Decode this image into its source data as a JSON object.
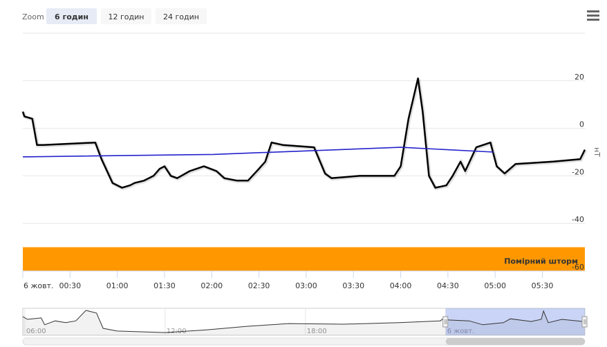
{
  "chart_data": {
    "type": "line",
    "zoom": {
      "label": "Zoom",
      "buttons": [
        "6 годин",
        "12 годин",
        "24 годин"
      ],
      "selected": 0
    },
    "y_label": "нТ",
    "xlim": [
      "00:00",
      "05:57"
    ],
    "xticks": [
      {
        "value": "00:00",
        "label": "6 жовт."
      },
      "00:30",
      "01:00",
      "01:30",
      "02:00",
      "02:30",
      "03:00",
      "03:30",
      "04:00",
      "04:30",
      "05:00",
      "05:30"
    ],
    "ylim": [
      -60,
      40
    ],
    "yticks": [
      -60,
      -40,
      -20,
      0,
      20
    ],
    "grid": true,
    "plot_bands": [
      {
        "from": -60,
        "to": -50,
        "color": "#ff9800",
        "label": "Помірний шторм"
      }
    ],
    "series": [
      {
        "color": "#000000",
        "x": [
          "00:00",
          "00:01",
          "00:06",
          "00:09",
          "00:13",
          "00:46",
          "00:50",
          "00:57",
          "01:03",
          "01:08",
          "01:11",
          "01:17",
          "01:23",
          "01:27",
          "01:30",
          "01:34",
          "01:38",
          "01:46",
          "01:55",
          "02:03",
          "02:08",
          "02:16",
          "02:23",
          "02:30",
          "02:34",
          "02:38",
          "02:45",
          "03:05",
          "03:12",
          "03:16",
          "03:34",
          "03:56",
          "04:00",
          "04:05",
          "04:11",
          "04:14",
          "04:18",
          "04:22",
          "04:29",
          "04:33",
          "04:38",
          "04:41",
          "04:48",
          "04:57",
          "05:01",
          "05:06",
          "05:13",
          "05:37",
          "05:54",
          "05:57"
        ],
        "values": [
          7,
          5,
          4,
          -7,
          -7,
          -6,
          -13,
          -23,
          -25,
          -24,
          -23,
          -22,
          -20,
          -17,
          -16,
          -20,
          -21,
          -18,
          -16,
          -18,
          -21,
          -22,
          -22,
          -17,
          -14,
          -6,
          -7,
          -8,
          -19,
          -21,
          -20,
          -20,
          -16,
          4,
          21,
          7,
          -20,
          -25,
          -24,
          -20,
          -14,
          -18,
          -8,
          -6,
          -16,
          -19,
          -15,
          -14,
          -13,
          -9
        ]
      },
      {
        "color": "#2222cc",
        "x": [
          "00:00",
          "02:01",
          "04:00",
          "04:59"
        ],
        "values": [
          -12,
          -11,
          -8,
          -10
        ]
      }
    ],
    "navigator": {
      "xlim": [
        "05:55",
        "05:57"
      ],
      "ylim": [
        -60,
        30
      ],
      "selected": [
        "00:00",
        "05:57"
      ],
      "xticks": [
        "06:00",
        "12:00",
        "18:00",
        {
          "value": "00:00",
          "label": "6 жовт."
        }
      ],
      "x": [
        "05:55",
        "06:07",
        "06:42",
        "06:51",
        "07:18",
        "07:45",
        "08:11",
        "08:37",
        "09:04",
        "09:21",
        "09:57",
        "12:00",
        "13:46",
        "15:32",
        "17:17",
        "19:38",
        "22:00",
        "23:46",
        "00:00",
        "00:07",
        "01:00",
        "01:35",
        "02:28",
        "02:46",
        "03:39",
        "04:05",
        "04:11",
        "04:23",
        "04:58",
        "05:53"
      ],
      "values": [
        2,
        -7,
        -2,
        -25,
        -12,
        -18,
        -12,
        23,
        14,
        -37,
        -46,
        -51,
        -42,
        -30,
        -21,
        -23,
        -18,
        -12,
        2,
        -9,
        -12,
        -25,
        -18,
        -5,
        -14,
        -7,
        21,
        -18,
        -7,
        -14
      ]
    }
  }
}
